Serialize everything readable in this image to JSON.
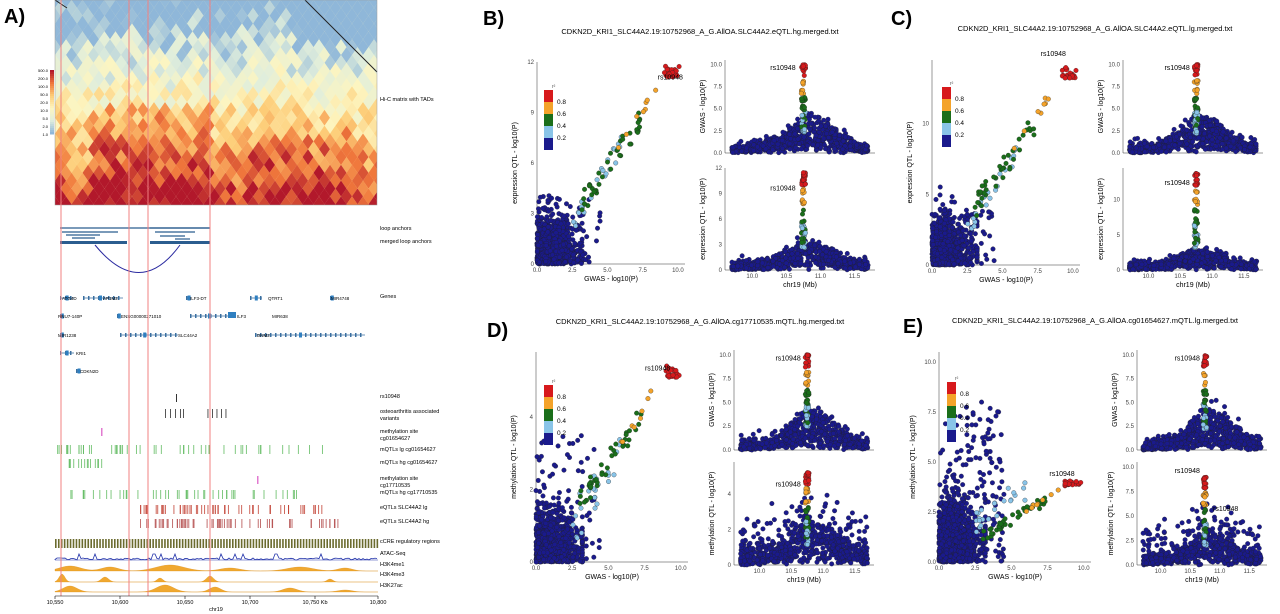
{
  "panels": {
    "A": {
      "letter": "A)",
      "hic_label": "Hi-C matrix with TADs",
      "hic_legend_ticks": [
        "500.0",
        "200.0",
        "100.0",
        "50.0",
        "20.0",
        "10.0",
        "5.0",
        "2.0",
        "1.0"
      ],
      "track_labels": [
        "loop anchors",
        "merged loop anchors",
        "Genes",
        "rs10948",
        "osteoarthritis associated variants",
        "methylation site cg01654627",
        "mQTLs lg cg01654627",
        "mQTLs hg cg01654627",
        "methylation site cg17710535",
        "mQTLs hg cg17710535",
        "eQTLs SLC44A2 lg",
        "eQTLs SLC44A2 hg",
        "cCRE regulatory regions",
        "ATAC-Seq",
        "H3K4me1",
        "H3K4me3",
        "H3K27ac"
      ],
      "genes": [
        "ATG4D",
        "KRI1",
        "CDKN2D",
        "RNU7-140P",
        "ENSG00000271010",
        "ILF3-DT",
        "ILF3",
        "QTRT1",
        "MIR4748",
        "MIR1238",
        "SLC44A2",
        "DNM2",
        "MIR638",
        "AP1M2"
      ],
      "x_ticks": [
        "10,550",
        "10,600",
        "10,650",
        "10,700",
        "10,750 Kb",
        "10,800"
      ],
      "x_label": "chr19"
    },
    "B": {
      "letter": "B)",
      "title": "CDKN2D_KRI1_SLC44A2.19:10752968_A_G.AllOA.SLC44A2.eQTL.hg.merged.txt"
    },
    "C": {
      "letter": "C)",
      "title": "CDKN2D_KRI1_SLC44A2.19:10752968_A_G.AllOA.SLC44A2.eQTL.lg.merged.txt"
    },
    "D": {
      "letter": "D)",
      "title": "CDKN2D_KRI1_SLC44A2.19:10752968_A_G.AllOA.cg17710535.mQTL.hg.merged.txt"
    },
    "E": {
      "letter": "E)",
      "title": "CDKN2D_KRI1_SLC44A2.19:10752968_A_G.AllOA.cg01654627.mQTL.lg.merged.txt"
    }
  },
  "snp_label": "rs10948",
  "r2_legend": {
    "title": "r²",
    "ticks": [
      "0.8",
      "0.6",
      "0.4",
      "0.2"
    ],
    "colors": [
      "#d7191c",
      "#f4a32a",
      "#1a6e1a",
      "#89c4e8",
      "#1a1a8c"
    ]
  },
  "colors": {
    "navy": "#1a1a7a",
    "hic_hot": "#b2182b",
    "hic_cold": "#8fb7d9",
    "anchor": "#2b5d8f",
    "red_line": "#f08080",
    "mqtl": "#5cb85c",
    "eqtl": "#c0392b",
    "atac": "#2233aa",
    "histone": "#f0a830",
    "ccre": "#6b6b2e"
  },
  "chart_data": [
    {
      "type": "scatter",
      "panel": "B-left",
      "xlabel": "GWAS - log10(P)",
      "ylabel": "expression QTL - log10(P)",
      "xlim": [
        0,
        10.5
      ],
      "ylim": [
        0,
        12
      ],
      "x_ticks": [
        "0.0",
        "2.5",
        "5.0",
        "7.5",
        "10.0"
      ],
      "y_ticks": [
        "0",
        "3",
        "6",
        "9",
        "12"
      ],
      "legend_placement": "top-left"
    },
    {
      "type": "scatter",
      "panel": "B-right-top",
      "xlabel": "",
      "ylabel": "GWAS - log10(P)",
      "xlim": [
        9.6,
        11.8
      ],
      "ylim": [
        0,
        10.5
      ],
      "x_ticks": [],
      "y_ticks": [
        "0.0",
        "2.5",
        "5.0",
        "7.5",
        "10.0"
      ]
    },
    {
      "type": "scatter",
      "panel": "B-right-bottom",
      "xlabel": "chr19 (Mb)",
      "ylabel": "expression QTL - log10(P)",
      "xlim": [
        9.6,
        11.8
      ],
      "ylim": [
        0,
        12
      ],
      "x_ticks": [
        "10.0",
        "10.5",
        "11.0",
        "11.5"
      ],
      "y_ticks": [
        "0",
        "3",
        "6",
        "9",
        "12"
      ]
    },
    {
      "type": "scatter",
      "panel": "C-left",
      "xlabel": "GWAS - log10(P)",
      "ylabel": "expression QTL - log10(P)",
      "xlim": [
        0,
        10.5
      ],
      "ylim": [
        0,
        14.5
      ],
      "x_ticks": [
        "0.0",
        "2.5",
        "5.0",
        "7.5",
        "10.0"
      ],
      "y_ticks": [
        "0",
        "5",
        "10"
      ],
      "legend_placement": "top-left"
    },
    {
      "type": "scatter",
      "panel": "C-right-top",
      "xlabel": "",
      "ylabel": "GWAS - log10(P)",
      "xlim": [
        9.6,
        11.8
      ],
      "ylim": [
        0,
        10.5
      ],
      "x_ticks": [],
      "y_ticks": [
        "0.0",
        "2.5",
        "5.0",
        "7.5",
        "10.0"
      ]
    },
    {
      "type": "scatter",
      "panel": "C-right-bottom",
      "xlabel": "chr19 (Mb)",
      "ylabel": "expression QTL - log10(P)",
      "xlim": [
        9.6,
        11.8
      ],
      "ylim": [
        0,
        14.5
      ],
      "x_ticks": [
        "10.0",
        "10.5",
        "11.0",
        "11.5"
      ],
      "y_ticks": [
        "0",
        "5",
        "10"
      ]
    },
    {
      "type": "scatter",
      "panel": "D-left",
      "xlabel": "GWAS - log10(P)",
      "ylabel": "methylation QTL - log10(P)",
      "xlim": [
        0,
        10.5
      ],
      "ylim": [
        0,
        5.8
      ],
      "x_ticks": [
        "0.0",
        "2.5",
        "5.0",
        "7.5",
        "10.0"
      ],
      "y_ticks": [
        "0",
        "2",
        "4"
      ],
      "legend_placement": "top-left"
    },
    {
      "type": "scatter",
      "panel": "D-right-top",
      "xlabel": "",
      "ylabel": "GWAS - log10(P)",
      "xlim": [
        9.6,
        11.8
      ],
      "ylim": [
        0,
        10.5
      ],
      "x_ticks": [],
      "y_ticks": [
        "0.0",
        "2.5",
        "5.0",
        "7.5",
        "10.0"
      ]
    },
    {
      "type": "scatter",
      "panel": "D-right-bottom",
      "xlabel": "chr19 (Mb)",
      "ylabel": "methylation QTL - log10(P)",
      "xlim": [
        9.6,
        11.8
      ],
      "ylim": [
        0,
        5.8
      ],
      "x_ticks": [
        "10.0",
        "10.5",
        "11.0",
        "11.5"
      ],
      "y_ticks": [
        "0",
        "2",
        "4"
      ]
    },
    {
      "type": "scatter",
      "panel": "E-left",
      "xlabel": "GWAS - log10(P)",
      "ylabel": "methylation QTL - log10(P)",
      "xlim": [
        0,
        10.5
      ],
      "ylim": [
        0,
        10.5
      ],
      "x_ticks": [
        "0.0",
        "2.5",
        "5.0",
        "7.5",
        "10.0"
      ],
      "y_ticks": [
        "0.0",
        "2.5",
        "5.0",
        "7.5",
        "10.0"
      ],
      "legend_placement": "top-left"
    },
    {
      "type": "scatter",
      "panel": "E-right-top",
      "xlabel": "",
      "ylabel": "GWAS - log10(P)",
      "xlim": [
        9.6,
        11.8
      ],
      "ylim": [
        0,
        10.5
      ],
      "x_ticks": [],
      "y_ticks": [
        "0.0",
        "2.5",
        "5.0",
        "7.5",
        "10.0"
      ]
    },
    {
      "type": "scatter",
      "panel": "E-right-bottom",
      "xlabel": "chr19 (Mb)",
      "ylabel": "methylation QTL - log10(P)",
      "xlim": [
        9.6,
        11.8
      ],
      "ylim": [
        0,
        10.5
      ],
      "x_ticks": [
        "10.0",
        "10.5",
        "11.0",
        "11.5"
      ],
      "y_ticks": [
        "0.0",
        "2.5",
        "5.0",
        "7.5",
        "10.0"
      ]
    }
  ]
}
